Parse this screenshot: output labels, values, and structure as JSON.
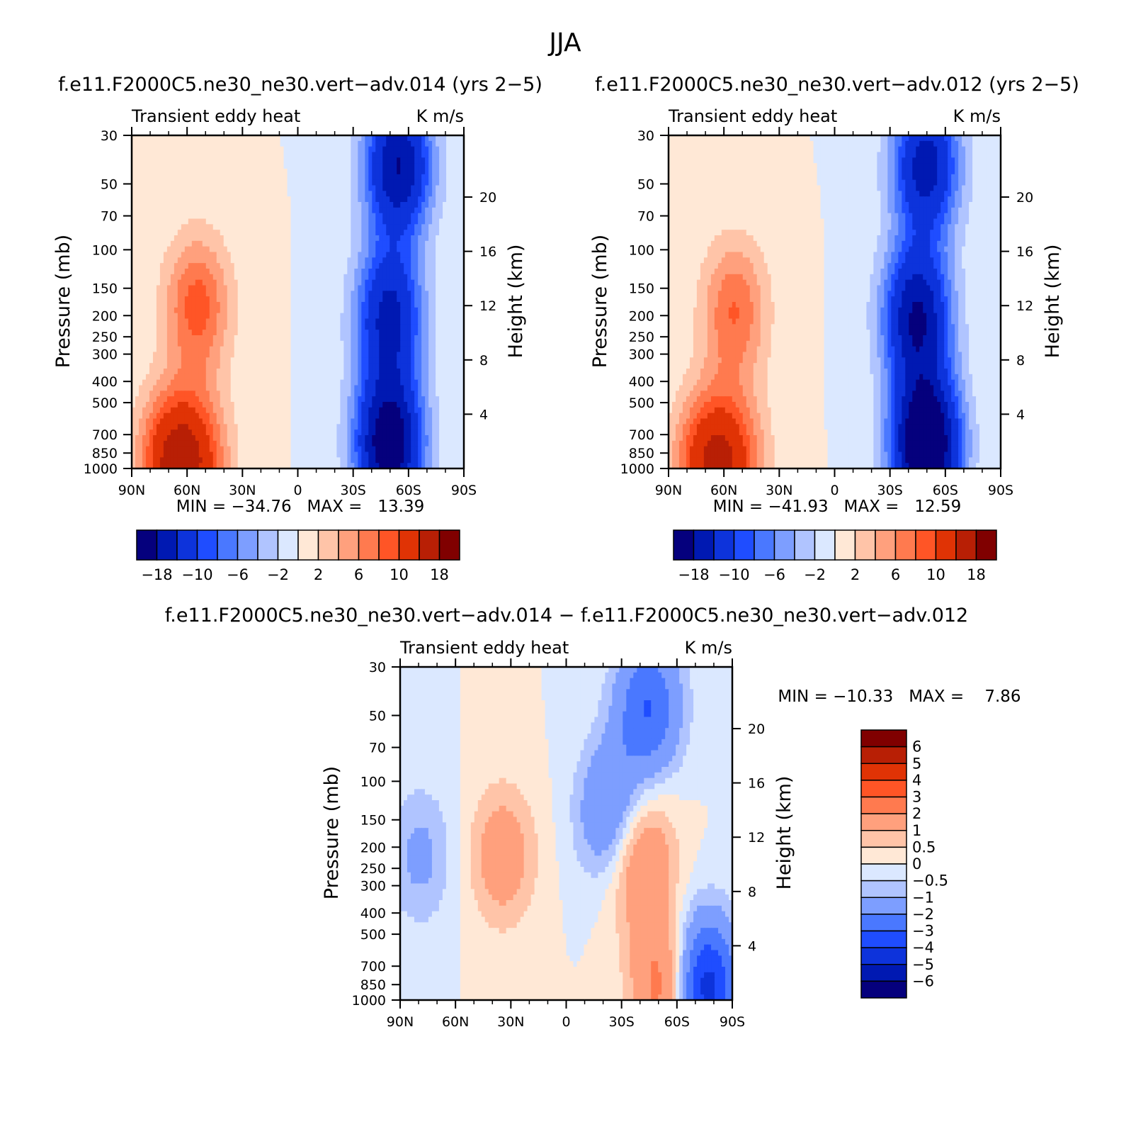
{
  "figure": {
    "title": "JJA"
  },
  "colors": {
    "full_palette": [
      "#05007d",
      "#0019b2",
      "#0d33db",
      "#1f4dff",
      "#4a78ff",
      "#7d9eff",
      "#b0c4ff",
      "#dbe8ff",
      "#ffe8d6",
      "#ffc4a8",
      "#ffa07d",
      "#ff7a4f",
      "#ff5526",
      "#e03305",
      "#b81f05",
      "#800000"
    ],
    "diff_palette": [
      "#05007d",
      "#0019b2",
      "#0d33db",
      "#1f4dff",
      "#4a78ff",
      "#7d9eff",
      "#b0c4ff",
      "#dbe8ff",
      "#ffe8d6",
      "#ffc4a8",
      "#ffa07d",
      "#ff7a4f",
      "#ff5526",
      "#e03305",
      "#b81f05",
      "#800000"
    ]
  },
  "chart_data": [
    {
      "type": "heatmap",
      "title": "f.e11.F2000C5.ne30_ne30.vert−adv.014 (yrs 2−5)",
      "left_label": "Transient eddy heat",
      "right_label": "K m/s",
      "xlabel": "",
      "ylabel": "Pressure (mb)",
      "ylabel_right": "Height (km)",
      "x_ticks": [
        "90N",
        "60N",
        "30N",
        "0",
        "30S",
        "60S",
        "90S"
      ],
      "y_ticks": [
        "30",
        "50",
        "70",
        "100",
        "150",
        "200",
        "250",
        "300",
        "400",
        "500",
        "700",
        "850",
        "1000"
      ],
      "y_ticks_right": [
        "20",
        "16",
        "12",
        "8",
        "4"
      ],
      "min_max": "MIN = −34.76   MAX =   13.39",
      "min": -34.76,
      "max": 13.39,
      "colorbar_labels": [
        "−18",
        "−10",
        "−6",
        "−2",
        "2",
        "6",
        "10",
        "18"
      ],
      "levels": [
        -22,
        -18,
        -14,
        -10,
        -8,
        -6,
        -4,
        -2,
        0,
        2,
        4,
        6,
        8,
        10,
        14,
        18,
        22
      ],
      "features": [
        {
          "lat": 55,
          "p": 180,
          "value": 9
        },
        {
          "lat": 70,
          "p": 960,
          "value": 12
        },
        {
          "lat": 55,
          "p": 950,
          "value": 9
        },
        {
          "lat": -55,
          "p": 40,
          "value": -18
        },
        {
          "lat": -50,
          "p": 200,
          "value": -15
        },
        {
          "lat": -50,
          "p": 800,
          "value": -22
        }
      ]
    },
    {
      "type": "heatmap",
      "title": "f.e11.F2000C5.ne30_ne30.vert−adv.012 (yrs 2−5)",
      "left_label": "Transient eddy heat",
      "right_label": "K m/s",
      "xlabel": "",
      "ylabel": "Pressure (mb)",
      "ylabel_right": "Height (km)",
      "x_ticks": [
        "90N",
        "60N",
        "30N",
        "0",
        "30S",
        "60S",
        "90S"
      ],
      "y_ticks": [
        "30",
        "50",
        "70",
        "100",
        "150",
        "200",
        "250",
        "300",
        "400",
        "500",
        "700",
        "850",
        "1000"
      ],
      "y_ticks_right": [
        "20",
        "16",
        "12",
        "8",
        "4"
      ],
      "min_max": "MIN = −41.93   MAX =   12.59",
      "min": -41.93,
      "max": 12.59,
      "colorbar_labels": [
        "−18",
        "−10",
        "−6",
        "−2",
        "2",
        "6",
        "10",
        "18"
      ],
      "levels": [
        -22,
        -18,
        -14,
        -10,
        -8,
        -6,
        -4,
        -2,
        0,
        2,
        4,
        6,
        8,
        10,
        14,
        18,
        22
      ],
      "features": [
        {
          "lat": 55,
          "p": 190,
          "value": 8
        },
        {
          "lat": 70,
          "p": 960,
          "value": 11
        },
        {
          "lat": 55,
          "p": 950,
          "value": 8
        },
        {
          "lat": -50,
          "p": 40,
          "value": -16
        },
        {
          "lat": -45,
          "p": 200,
          "value": -18
        },
        {
          "lat": -50,
          "p": 800,
          "value": -26
        }
      ]
    },
    {
      "type": "heatmap",
      "title": "f.e11.F2000C5.ne30_ne30.vert−adv.014 − f.e11.F2000C5.ne30_ne30.vert−adv.012",
      "left_label": "Transient eddy heat",
      "right_label": "K m/s",
      "xlabel": "",
      "ylabel": "Pressure (mb)",
      "ylabel_right": "Height (km)",
      "x_ticks": [
        "90N",
        "60N",
        "30N",
        "0",
        "30S",
        "60S",
        "90S"
      ],
      "y_ticks": [
        "30",
        "50",
        "70",
        "100",
        "150",
        "200",
        "250",
        "300",
        "400",
        "500",
        "700",
        "850",
        "1000"
      ],
      "y_ticks_right": [
        "20",
        "16",
        "12",
        "8",
        "4"
      ],
      "min_max": "MIN = −10.33   MAX =    7.86",
      "min": -10.33,
      "max": 7.86,
      "colorbar_labels": [
        "6",
        "5",
        "4",
        "3",
        "2",
        "1",
        "0.5",
        "0",
        "−0.5",
        "−1",
        "−2",
        "−3",
        "−4",
        "−5",
        "−6"
      ],
      "levels": [
        -7,
        -6,
        -5,
        -4,
        -3,
        -2,
        -1,
        -0.5,
        0,
        0.5,
        1,
        2,
        3,
        4,
        5,
        6,
        7
      ],
      "features": [
        {
          "lat": 35,
          "p": 220,
          "value": 1.6
        },
        {
          "lat": -40,
          "p": 220,
          "value": 2.4
        },
        {
          "lat": -55,
          "p": 900,
          "value": 3
        },
        {
          "lat": -45,
          "p": 45,
          "value": -3
        },
        {
          "lat": -25,
          "p": 140,
          "value": -2.5
        },
        {
          "lat": -75,
          "p": 900,
          "value": -5
        },
        {
          "lat": 80,
          "p": 220,
          "value": -1.2
        }
      ]
    }
  ]
}
